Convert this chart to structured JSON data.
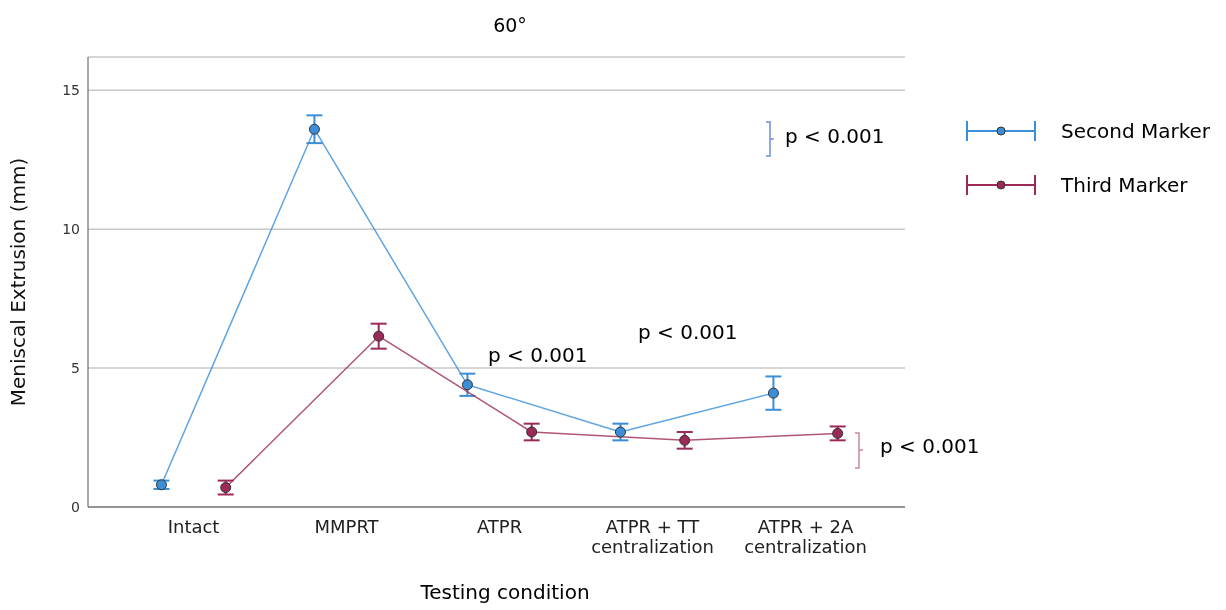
{
  "chart_data": {
    "type": "line",
    "title": "60°",
    "xlabel": "Testing condition",
    "ylabel": "Meniscal Extrusion (mm)",
    "categories": [
      "Intact",
      "MMPRT",
      "ATPR",
      "ATPR + TT centralization",
      "ATPR + 2A centralization"
    ],
    "series": [
      {
        "name": "Second Marker",
        "color": "#3a8fd8",
        "values": [
          0.8,
          13.6,
          4.4,
          2.7,
          4.1
        ],
        "errors": [
          0.15,
          0.5,
          0.4,
          0.3,
          0.6
        ]
      },
      {
        "name": "Third Marker",
        "color": "#9c2a58",
        "values": [
          0.7,
          6.15,
          2.7,
          2.4,
          2.65
        ],
        "errors": [
          0.25,
          0.45,
          0.3,
          0.3,
          0.25
        ]
      }
    ],
    "ylim": [
      0,
      16.2
    ],
    "yticks": [
      0,
      5,
      10,
      15
    ],
    "grid": "y",
    "legend": "top right",
    "marker": "circle",
    "line_style": "solid",
    "annotations": [
      "p < 0.001",
      "p < 0.001",
      "p < 0.001",
      "p < 0.001"
    ]
  }
}
